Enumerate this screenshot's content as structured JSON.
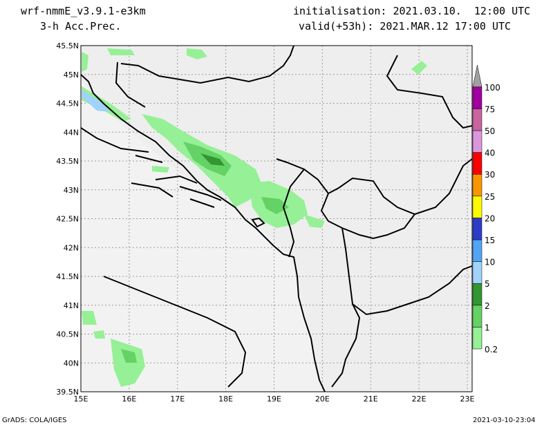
{
  "header": {
    "model": "wrf-nmmE_v3.9.1-e3km",
    "field": "3-h Acc.Prec.",
    "init": "initialisation: 2021.03.10.  12:00 UTC",
    "valid": "valid(+53h): 2021.MAR.12 17:00 UTC"
  },
  "footer": {
    "left": "GrADS: COLA/IGES",
    "right": "2021-03-10-23:04"
  },
  "map": {
    "x_ticks": [
      "15E",
      "16E",
      "17E",
      "18E",
      "19E",
      "20E",
      "21E",
      "22E",
      "23E"
    ],
    "y_ticks": [
      "45.5N",
      "45N",
      "44.5N",
      "44N",
      "43.5N",
      "43N",
      "42.5N",
      "42N",
      "41.5N",
      "41N",
      "40.5N",
      "40N",
      "39.5N"
    ],
    "colors": {
      "land": "#eeeeee",
      "frame": "#000000"
    }
  },
  "legend": {
    "levels": [
      "0.2",
      "1",
      "2",
      "5",
      "10",
      "15",
      "20",
      "25",
      "30",
      "40",
      "50",
      "75",
      "100"
    ],
    "colors": [
      "#96f096",
      "#64d264",
      "#329632",
      "#a0d2fa",
      "#50a5f5",
      "#2d3cc8",
      "#fafa00",
      "#fa9600",
      "#fa0000",
      "#dc96dc",
      "#c864a0",
      "#a000a0",
      "#a0a0a0"
    ]
  }
}
